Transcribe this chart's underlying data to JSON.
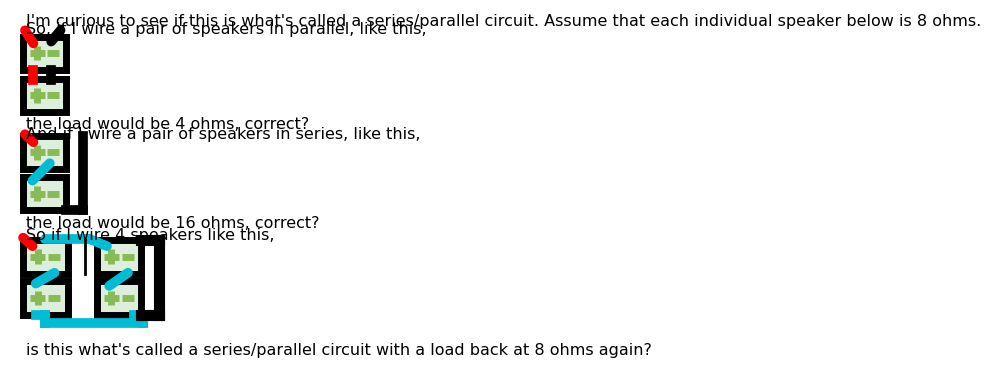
{
  "text1": "I'm curious to see if this is what's called a series/parallel circuit. Assume that each individual speaker below is 8 ohms.",
  "text2": "So, if I wire a pair of speakers in parallel, like this,",
  "text3": "the load would be 4 ohms, correct?",
  "text4": "And if I wire a pair of speakers in series, like this,",
  "text5": "the load would be 16 ohms, correct?",
  "text6": "So if I wire 4 speakers like this,",
  "text7": "is this what's called a series/parallel circuit with a load back at 8 ohms again?",
  "bg_color": "#ffffff",
  "box_color": "#000000",
  "box_fill": "#ddeedd",
  "plus_color": "#88bb55",
  "minus_color": "#88bb55",
  "red_wire": "#ff0000",
  "black_wire": "#000000",
  "blue_wire": "#00bcd4",
  "font_size": 11.5
}
